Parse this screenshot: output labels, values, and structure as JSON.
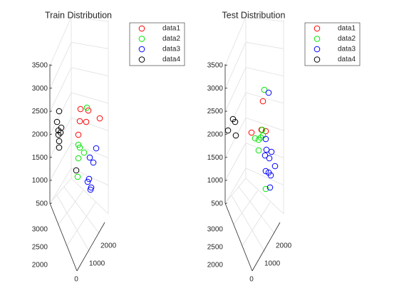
{
  "chart_data": [
    {
      "type": "scatter",
      "title": "Train Distribution",
      "xlabel": "",
      "ylabel": "",
      "zlabel": "",
      "z_ticks": [
        "500",
        "1000",
        "1500",
        "2000",
        "2500",
        "3000",
        "3500"
      ],
      "x_ticks": [
        "2000",
        "2500",
        "3000"
      ],
      "y_ticks": [
        "0",
        "1000",
        "2000"
      ],
      "zlim": [
        500,
        3500
      ],
      "grid": true,
      "legend_position": "top-right",
      "series": [
        {
          "name": "data1",
          "color": "#ff0000",
          "points": [
            [
              140,
              166
            ],
            [
              124,
              155
            ],
            [
              121,
              171
            ],
            [
              110,
              189
            ],
            [
              112,
              170
            ],
            [
              113,
              153
            ]
          ]
        },
        {
          "name": "data2",
          "color": "#00e600",
          "points": [
            [
              122,
              151
            ],
            [
              110,
              203
            ],
            [
              112,
              207
            ],
            [
              118,
              214
            ],
            [
              110,
              222
            ],
            [
              109,
              248
            ]
          ]
        },
        {
          "name": "data3",
          "color": "#0000ff",
          "points": [
            [
              135,
              208
            ],
            [
              126,
              221
            ],
            [
              131,
              228
            ],
            [
              125,
              251
            ],
            [
              123,
              255
            ],
            [
              128,
              263
            ],
            [
              127,
              266
            ]
          ]
        },
        {
          "name": "data4",
          "color": "#000000",
          "points": [
            [
              83,
              156
            ],
            [
              80,
              171
            ],
            [
              86,
              179
            ],
            [
              82,
              183
            ],
            [
              85,
              186
            ],
            [
              82,
              189
            ],
            [
              83,
              198
            ],
            [
              83,
              207
            ],
            [
              107,
              239
            ]
          ]
        }
      ]
    },
    {
      "type": "scatter",
      "title": "Test Distribution",
      "xlabel": "",
      "ylabel": "",
      "zlabel": "",
      "z_ticks": [
        "500",
        "1000",
        "1500",
        "2000",
        "2500",
        "3000",
        "3500"
      ],
      "x_ticks": [
        "2000",
        "2500",
        "3000"
      ],
      "y_ticks": [
        "0",
        "1000",
        "2000"
      ],
      "zlim": [
        500,
        3500
      ],
      "grid": true,
      "legend_position": "top-right",
      "series": [
        {
          "name": "data1",
          "color": "#ff0000",
          "points": [
            [
              369,
              142
            ],
            [
              353,
              186
            ],
            [
              367,
              182
            ],
            [
              373,
              184
            ]
          ]
        },
        {
          "name": "data2",
          "color": "#00e600",
          "points": [
            [
              371,
              126
            ],
            [
              368,
              182
            ],
            [
              369,
              190
            ],
            [
              366,
              193
            ],
            [
              363,
              196
            ],
            [
              358,
              194
            ],
            [
              363,
              211
            ],
            [
              373,
              265
            ]
          ]
        },
        {
          "name": "data3",
          "color": "#0000ff",
          "points": [
            [
              377,
              130
            ],
            [
              373,
              195
            ],
            [
              374,
              210
            ],
            [
              381,
              213
            ],
            [
              378,
              222
            ],
            [
              372,
              218
            ],
            [
              386,
              233
            ],
            [
              377,
              242
            ],
            [
              373,
              240
            ],
            [
              380,
              246
            ],
            [
              379,
              263
            ]
          ]
        },
        {
          "name": "data4",
          "color": "#000000",
          "points": [
            [
              327,
              167
            ],
            [
              330,
              171
            ],
            [
              320,
              183
            ],
            [
              331,
              190
            ]
          ]
        }
      ]
    }
  ]
}
